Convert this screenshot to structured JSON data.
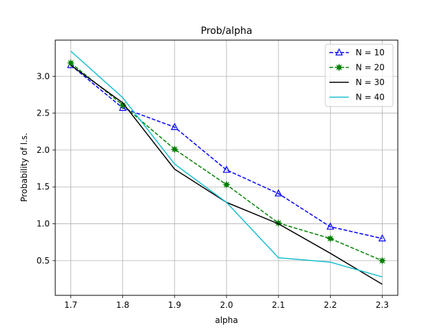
{
  "chart_data": {
    "type": "line",
    "title": "Prob/alpha",
    "xlabel": "alpha",
    "ylabel": "Probability of l.s.",
    "x": [
      1.7,
      1.8,
      1.9,
      2.0,
      2.1,
      2.2,
      2.3
    ],
    "x_tick_labels": [
      "1.7",
      "1.8",
      "1.9",
      "2.0",
      "2.1",
      "2.2",
      "2.3"
    ],
    "y_ticks": [
      0.5,
      1.0,
      1.5,
      2.0,
      2.5,
      3.0
    ],
    "y_tick_labels": [
      "0.5",
      "1.0",
      "1.5",
      "2.0",
      "2.5",
      "3.0"
    ],
    "xlim": [
      1.67,
      2.33
    ],
    "ylim": [
      0.03,
      3.49
    ],
    "grid": true,
    "legend_position": "top-right",
    "series": [
      {
        "name": "N = 10",
        "values": [
          3.15,
          2.57,
          2.31,
          1.73,
          1.41,
          0.96,
          0.8
        ],
        "color": "#0000ff",
        "dash": "dashed",
        "marker": "triangle"
      },
      {
        "name": "N = 20",
        "values": [
          3.18,
          2.61,
          2.01,
          1.53,
          1.01,
          0.8,
          0.5
        ],
        "color": "#008000",
        "dash": "dashed",
        "marker": "star"
      },
      {
        "name": "N = 30",
        "values": [
          3.15,
          2.64,
          1.74,
          1.29,
          1.0,
          0.6,
          0.18
        ],
        "color": "#000000",
        "dash": "solid",
        "marker": "none"
      },
      {
        "name": "N = 40",
        "values": [
          3.34,
          2.71,
          1.81,
          1.29,
          0.54,
          0.48,
          0.28
        ],
        "color": "#17becf",
        "dash": "solid",
        "marker": "none"
      }
    ]
  }
}
